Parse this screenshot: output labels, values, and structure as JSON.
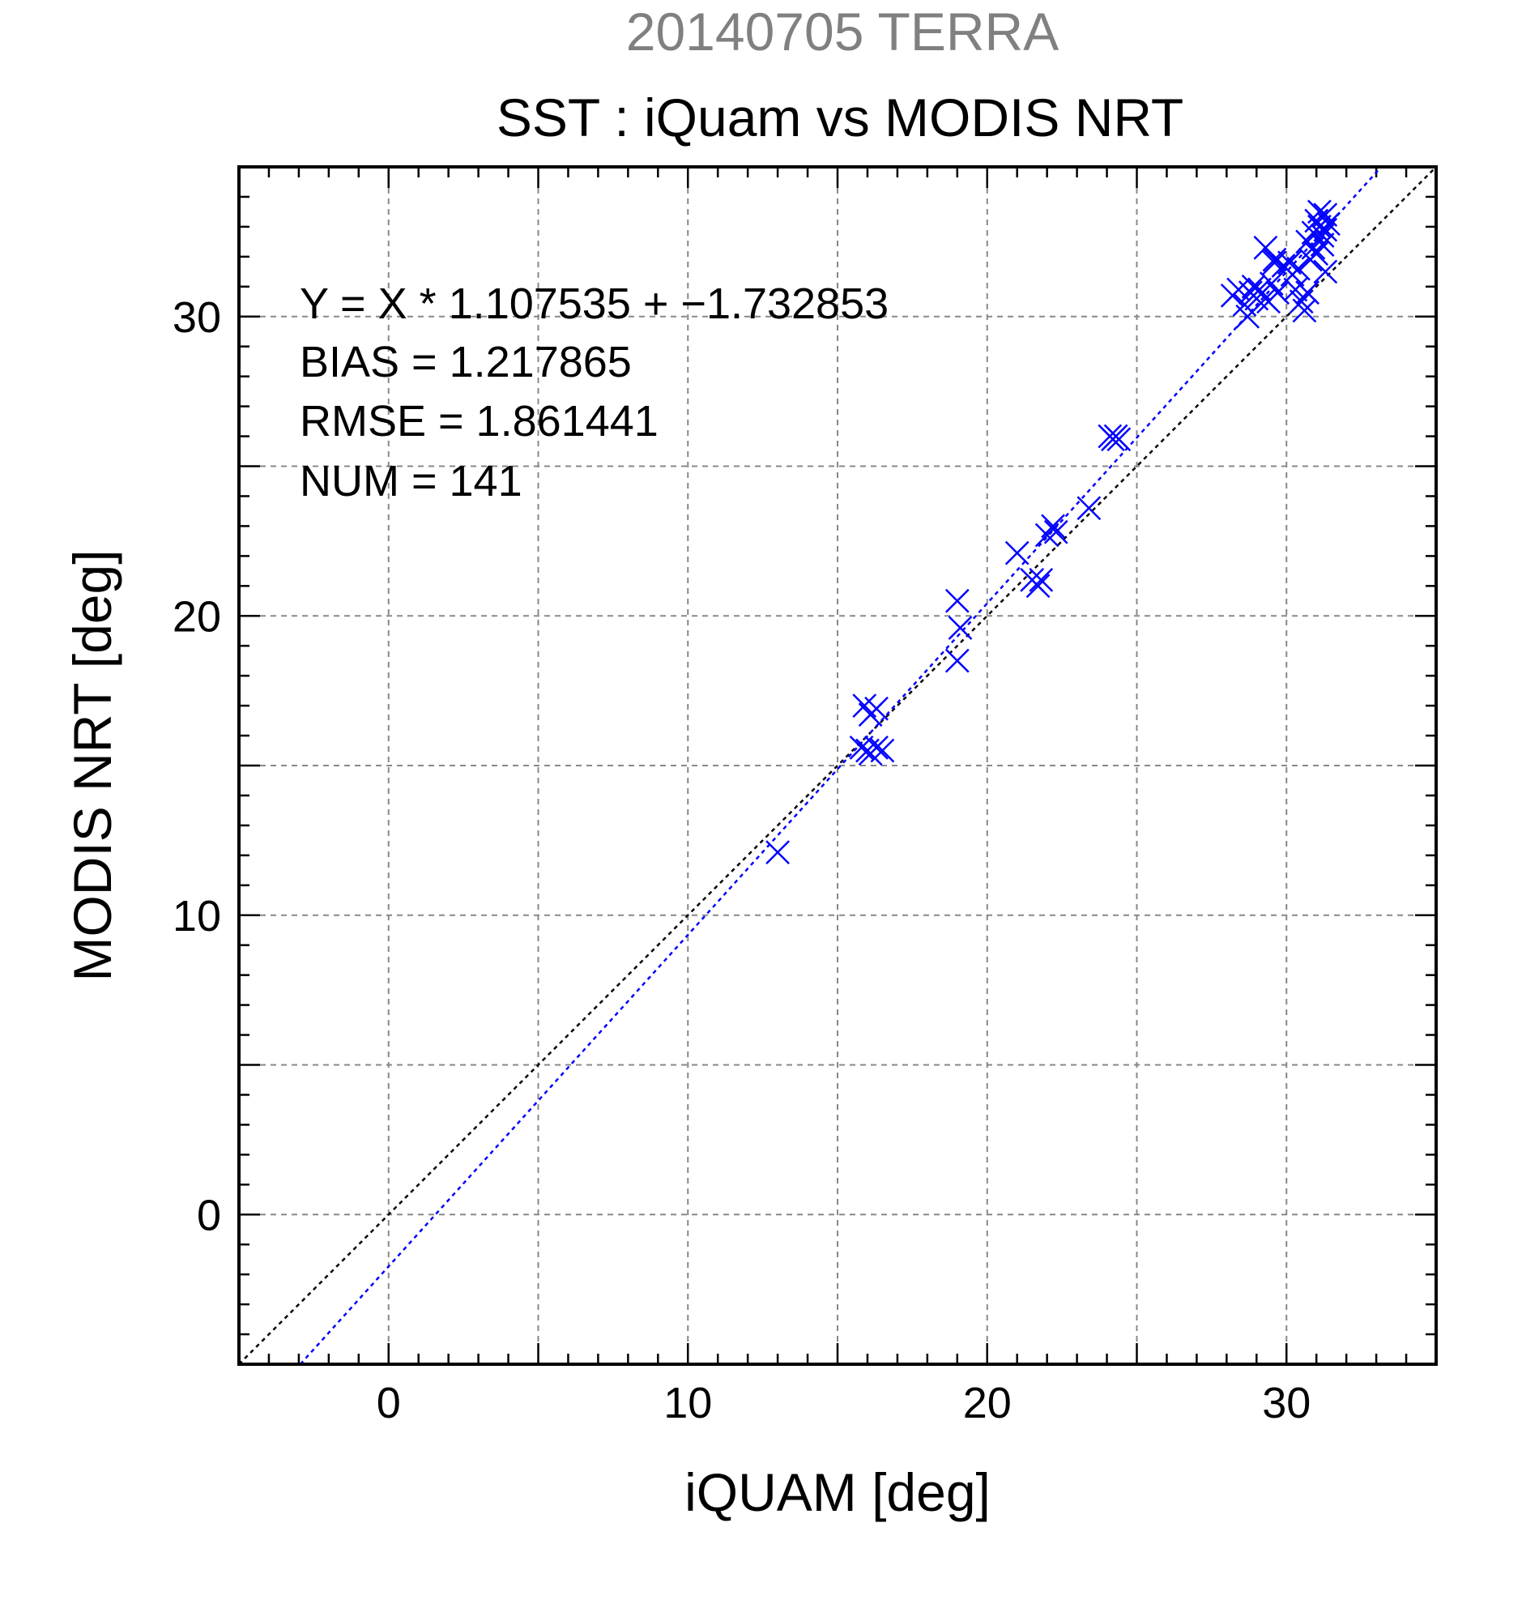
{
  "chart_data": {
    "type": "scatter",
    "supertitle": "20140705 TERRA",
    "title": "SST : iQuam vs MODIS NRT",
    "xlabel": "iQUAM [deg]",
    "ylabel": "MODIS NRT [deg]",
    "xlim": [
      -5,
      35
    ],
    "ylim": [
      -5,
      35
    ],
    "x_ticks": [
      0,
      10,
      20,
      30
    ],
    "y_ticks": [
      0,
      10,
      20,
      30
    ],
    "x_tick_labels": [
      "0",
      "10",
      "20",
      "30"
    ],
    "y_tick_labels": [
      "0",
      "10",
      "20",
      "30"
    ],
    "x_grid": [
      0,
      5,
      10,
      15,
      20,
      25,
      30
    ],
    "y_grid": [
      0,
      5,
      10,
      15,
      20,
      25,
      30
    ],
    "grid": true,
    "stats": {
      "equation": "Y = X * 1.107535 + −1.732853",
      "bias": "BIAS = 1.217865",
      "rmse": "RMSE = 1.861441",
      "num": "NUM = 141"
    },
    "fit_line": {
      "slope": 1.107535,
      "intercept": -1.732853
    },
    "identity_line": {
      "slope": 1,
      "intercept": 0
    },
    "colors": {
      "points": "#0000ff",
      "fit_line": "#0000ff",
      "identity_line": "#000000",
      "grid": "#888888",
      "supertitle": "#808080"
    },
    "points": [
      [
        13.0,
        12.1
      ],
      [
        15.9,
        17.0
      ],
      [
        16.1,
        16.7
      ],
      [
        16.3,
        16.9
      ],
      [
        15.8,
        15.6
      ],
      [
        16.0,
        15.5
      ],
      [
        16.1,
        15.4
      ],
      [
        16.3,
        15.6
      ],
      [
        16.5,
        15.5
      ],
      [
        19.0,
        20.5
      ],
      [
        19.1,
        19.6
      ],
      [
        19.0,
        18.5
      ],
      [
        21.0,
        22.1
      ],
      [
        21.5,
        21.2
      ],
      [
        21.7,
        21.0
      ],
      [
        21.8,
        21.2
      ],
      [
        22.0,
        22.7
      ],
      [
        22.2,
        23.0
      ],
      [
        22.3,
        22.8
      ],
      [
        23.4,
        23.6
      ],
      [
        24.1,
        26.0
      ],
      [
        24.2,
        25.9
      ],
      [
        24.3,
        26.0
      ],
      [
        24.4,
        25.9
      ],
      [
        28.2,
        30.7
      ],
      [
        28.4,
        30.9
      ],
      [
        28.6,
        30.4
      ],
      [
        28.8,
        30.8
      ],
      [
        28.9,
        31.0
      ],
      [
        29.0,
        30.6
      ],
      [
        28.7,
        30.0
      ],
      [
        29.1,
        30.9
      ],
      [
        29.3,
        30.6
      ],
      [
        29.5,
        31.1
      ],
      [
        29.7,
        30.8
      ],
      [
        29.4,
        30.5
      ],
      [
        29.6,
        31.9
      ],
      [
        29.3,
        32.3
      ],
      [
        29.6,
        31.8
      ],
      [
        29.9,
        31.7
      ],
      [
        30.1,
        31.8
      ],
      [
        30.2,
        31.4
      ],
      [
        30.4,
        31.6
      ],
      [
        30.3,
        30.9
      ],
      [
        30.5,
        30.5
      ],
      [
        30.6,
        30.2
      ],
      [
        30.7,
        30.8
      ],
      [
        30.8,
        31.9
      ],
      [
        30.9,
        32.3
      ],
      [
        30.7,
        32.5
      ],
      [
        30.9,
        32.8
      ],
      [
        31.0,
        33.2
      ],
      [
        31.1,
        33.0
      ],
      [
        31.2,
        32.7
      ],
      [
        31.3,
        33.4
      ],
      [
        31.0,
        32.1
      ],
      [
        31.2,
        32.4
      ],
      [
        31.3,
        31.5
      ],
      [
        31.4,
        33.1
      ],
      [
        31.1,
        33.5
      ],
      [
        31.3,
        32.9
      ]
    ]
  }
}
